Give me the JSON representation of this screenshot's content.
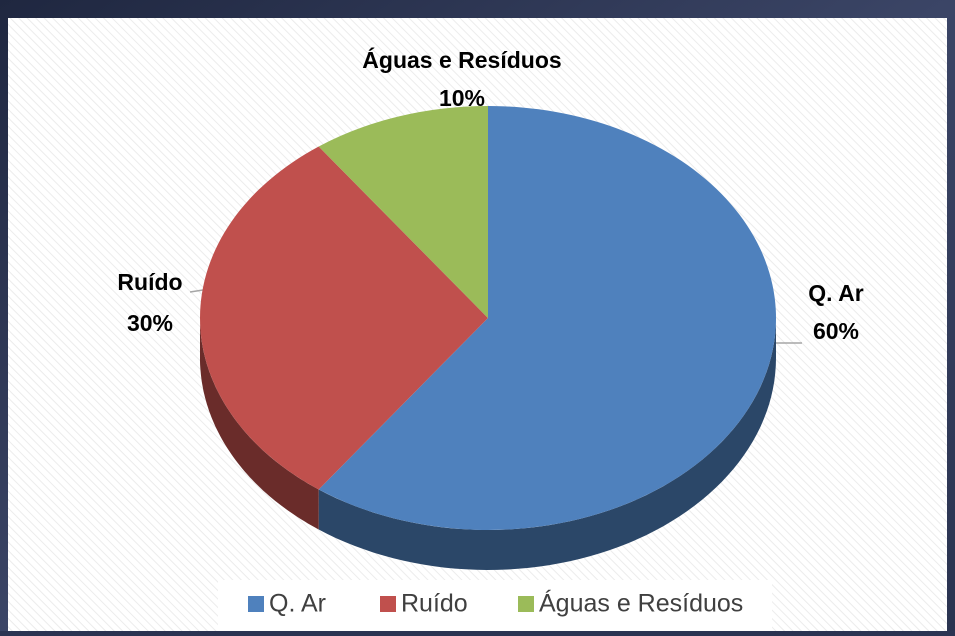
{
  "chart_data": {
    "type": "pie",
    "categories": [
      "Q. Ar",
      "Ruído",
      "Águas e Resíduos"
    ],
    "values": [
      60,
      30,
      10
    ],
    "value_labels": [
      "60%",
      "30%",
      "10%"
    ],
    "colors": [
      "#4f81bd",
      "#c0504d",
      "#9bbb59"
    ],
    "legend": "bottom"
  }
}
